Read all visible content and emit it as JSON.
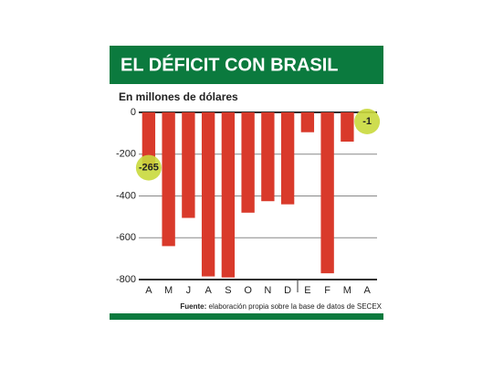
{
  "chart_data": {
    "type": "bar",
    "title": "EL DÉFICIT CON BRASIL",
    "subtitle": "En millones de dólares",
    "categories": [
      "A",
      "M",
      "J",
      "A",
      "S",
      "O",
      "N",
      "D",
      "E",
      "F",
      "M",
      "A"
    ],
    "values": [
      -265,
      -640,
      -505,
      -785,
      -790,
      -480,
      -425,
      -440,
      -95,
      -770,
      -140,
      -1
    ],
    "value_labels": [
      "-265",
      null,
      null,
      null,
      null,
      null,
      null,
      null,
      null,
      null,
      null,
      "-1"
    ],
    "color": "#d93a2b",
    "label_color": "#c9d93c",
    "ylim": [
      -800,
      0
    ],
    "yticks": [
      0,
      -200,
      -400,
      -600,
      -800
    ],
    "grid": true,
    "source_label": "Fuente:",
    "source": "elaboración propia sobre la base de datos de SECEX"
  }
}
